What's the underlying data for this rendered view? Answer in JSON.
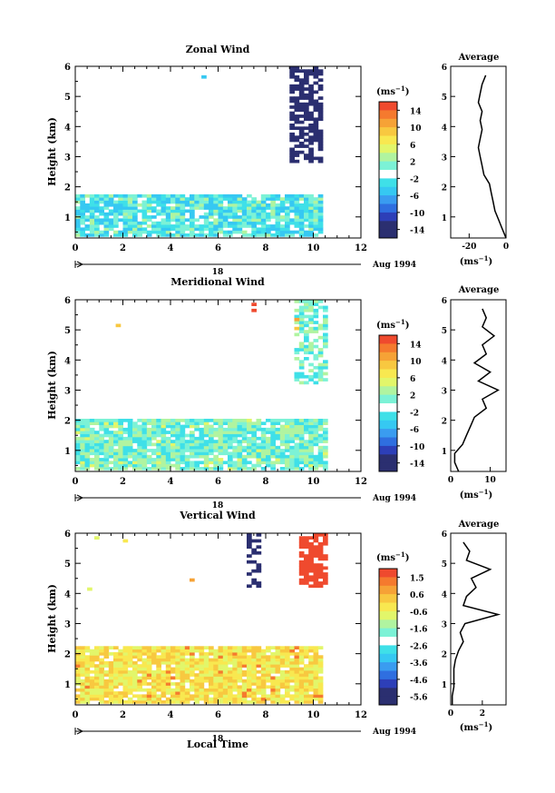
{
  "figure": {
    "xlabel": "Local Time",
    "date_label": "Aug 1994",
    "day_label": "18",
    "units": "(ms",
    "units_exp": "−1",
    "units_close": ")"
  },
  "colors": {
    "scale": [
      "#2b2f70",
      "#2d3fb8",
      "#2f6fe0",
      "#3a9cf0",
      "#36c8f2",
      "#3fe0e8",
      "#7cf2d6",
      "#b0f4a0",
      "#e2f66a",
      "#f8e850",
      "#f8c840",
      "#f6a236",
      "#f57a2e",
      "#ef4a2e"
    ],
    "white_gap": "#ffffff",
    "line": "#000000"
  },
  "chart_data": [
    {
      "type": "heatmap",
      "title": "Zonal Wind",
      "ylabel": "Height (km)",
      "xlim": [
        0,
        12
      ],
      "ylim": [
        0.3,
        6
      ],
      "xticks": [
        0,
        2,
        4,
        6,
        8,
        10,
        12
      ],
      "yticks": [
        1,
        2,
        3,
        4,
        5,
        6
      ],
      "colorbar_ticks": [
        "14",
        "10",
        "6",
        "2",
        "-2",
        "-6",
        "-10",
        "-14"
      ],
      "colorbar_range": [
        -16,
        16
      ],
      "average": {
        "title": "Average",
        "xlim": [
          -30,
          0
        ],
        "xticks": [
          "-20",
          "0"
        ],
        "height": [
          0.3,
          0.6,
          0.9,
          1.2,
          1.5,
          1.8,
          2.1,
          2.4,
          2.7,
          3.0,
          3.3,
          3.6,
          3.9,
          4.2,
          4.5,
          4.8,
          5.1,
          5.4,
          5.7
        ],
        "value": [
          0,
          -2,
          -4,
          -6,
          -7,
          -8,
          -9,
          -12,
          -13,
          -14,
          -15,
          -14,
          -13,
          -14,
          -13,
          -15,
          -14,
          -13,
          -11
        ]
      }
    },
    {
      "type": "heatmap",
      "title": "Meridional Wind",
      "ylabel": "Height (km)",
      "xlim": [
        0,
        12
      ],
      "ylim": [
        0.3,
        6
      ],
      "xticks": [
        0,
        2,
        4,
        6,
        8,
        10,
        12
      ],
      "yticks": [
        1,
        2,
        3,
        4,
        5,
        6
      ],
      "colorbar_ticks": [
        "14",
        "10",
        "6",
        "2",
        "-2",
        "-6",
        "-10",
        "-14"
      ],
      "colorbar_range": [
        -16,
        16
      ],
      "average": {
        "title": "Average",
        "xlim": [
          0,
          14
        ],
        "xticks": [
          "0",
          "10"
        ],
        "height": [
          0.3,
          0.6,
          0.9,
          1.2,
          1.5,
          1.8,
          2.1,
          2.4,
          2.7,
          3.0,
          3.3,
          3.6,
          3.9,
          4.2,
          4.5,
          4.8,
          5.1,
          5.4,
          5.7
        ],
        "value": [
          2,
          1,
          1,
          3,
          4,
          5,
          6,
          9,
          8,
          12,
          7,
          10,
          6,
          9,
          8,
          11,
          8,
          9,
          8
        ]
      }
    },
    {
      "type": "heatmap",
      "title": "Vertical Wind",
      "ylabel": "Height (km)",
      "xlim": [
        0,
        12
      ],
      "ylim": [
        0.3,
        6
      ],
      "xticks": [
        0,
        2,
        4,
        6,
        8,
        10,
        12
      ],
      "yticks": [
        1,
        2,
        3,
        4,
        5,
        6
      ],
      "colorbar_ticks": [
        "1.5",
        "0.6",
        "-0.6",
        "-1.6",
        "-2.6",
        "-3.6",
        "-4.6",
        "-5.6"
      ],
      "colorbar_range": [
        -6,
        2
      ],
      "average": {
        "title": "Average",
        "xlim": [
          0,
          3.5
        ],
        "xticks": [
          "0",
          "2"
        ],
        "height": [
          0.3,
          0.6,
          0.9,
          1.2,
          1.5,
          1.8,
          2.1,
          2.4,
          2.7,
          3.0,
          3.3,
          3.6,
          3.9,
          4.2,
          4.5,
          4.8,
          5.1,
          5.4,
          5.7
        ],
        "value": [
          0.1,
          0.1,
          0.2,
          0.2,
          0.2,
          0.3,
          0.5,
          0.8,
          0.6,
          0.9,
          3.0,
          0.8,
          1.0,
          1.6,
          1.3,
          2.5,
          1.0,
          1.2,
          0.8
        ]
      }
    }
  ]
}
